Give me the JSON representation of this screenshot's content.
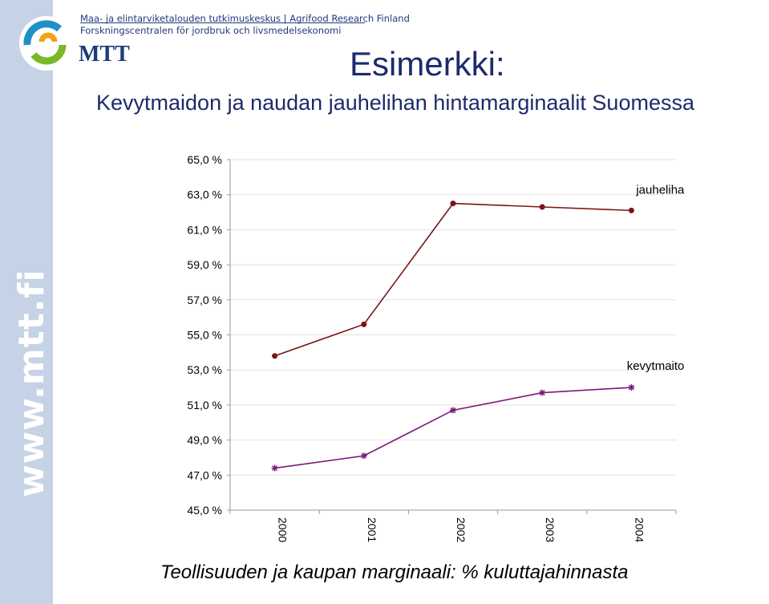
{
  "header": {
    "org_line1": "Maa- ja elintarviketalouden tutkimuskeskus  |  Agrifood Research Finland",
    "org_line2": "Forskningscentralen för jordbruk och livsmedelsekonomi",
    "brand": "MTT",
    "side_url": "www.mtt.fi"
  },
  "slide": {
    "title": "Esimerkki:",
    "subtitle": "Kevytmaidon ja naudan jauhelihan hintamarginaalit Suomessa",
    "caption": "Teollisuuden ja kaupan marginaali: % kuluttajahinnasta"
  },
  "colors": {
    "side_band": "#c6d3e6",
    "jauheliha": "#7b1416",
    "kevytmaito": "#7a1a7a",
    "title": "#1d2b6b"
  },
  "chart_data": {
    "type": "line",
    "x": [
      "2000",
      "2001",
      "2002",
      "2003",
      "2004"
    ],
    "series": [
      {
        "name": "jauheliha",
        "values": [
          53.8,
          55.6,
          62.5,
          62.3,
          62.1
        ],
        "marker": "circle"
      },
      {
        "name": "kevytmaito",
        "values": [
          47.4,
          48.1,
          50.7,
          51.7,
          52.0
        ],
        "marker": "asterisk"
      }
    ],
    "ylim": [
      45,
      65
    ],
    "yticks": [
      "45,0 %",
      "47,0 %",
      "49,0 %",
      "51,0 %",
      "53,0 %",
      "55,0 %",
      "57,0 %",
      "59,0 %",
      "61,0 %",
      "63,0 %",
      "65,0 %"
    ],
    "grid": true,
    "legend": "inline labels at line ends"
  }
}
